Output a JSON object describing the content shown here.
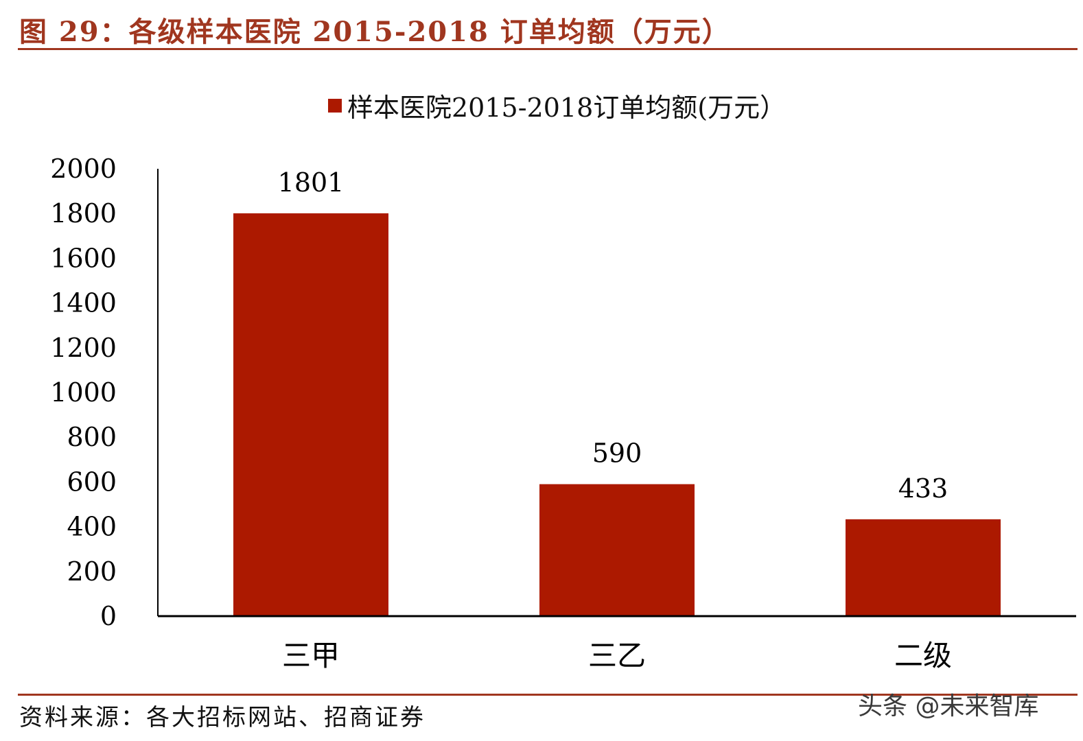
{
  "header": {
    "figure_title": "图 29：各级样本医院 2015-2018 订单均额（万元）"
  },
  "colors": {
    "accent": "#a0361f",
    "bar": "#ac1900"
  },
  "chart_data": {
    "type": "bar",
    "categories": [
      "三甲",
      "三乙",
      "二级"
    ],
    "series": [
      {
        "name": "样本医院2015-2018订单均额(万元）",
        "values": [
          1801,
          590,
          433
        ]
      }
    ],
    "data_labels": [
      "1801",
      "590",
      "433"
    ],
    "yticks": [
      "0",
      "200",
      "400",
      "600",
      "800",
      "1000",
      "1200",
      "1400",
      "1600",
      "1800",
      "2000"
    ],
    "ylim": [
      0,
      2000
    ],
    "legend_position": "top-center",
    "grid": false
  },
  "footer": {
    "source": "资料来源：各大招标网站、招商证券",
    "watermark": "头条 @未来智库"
  }
}
